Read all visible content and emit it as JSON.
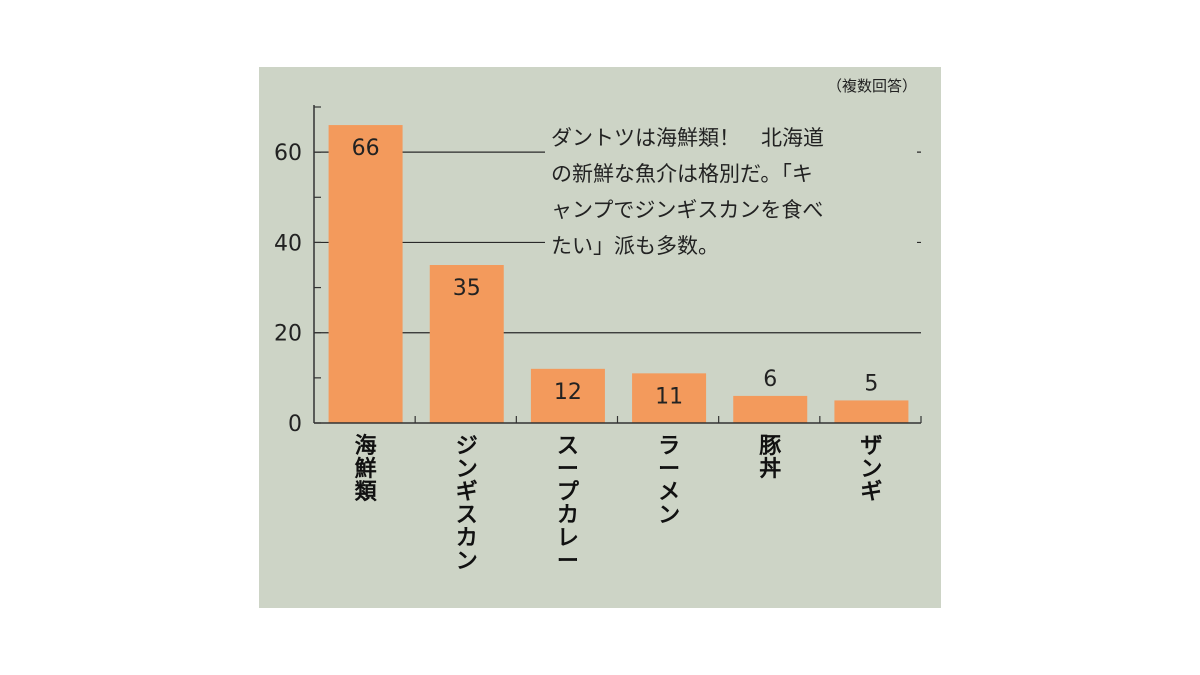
{
  "note": "（複数回答）",
  "annotation_lines": [
    "ダントツは海鮮類！　北海道",
    "の新鮮な魚介は格別だ。「キ",
    "ャンプでジンギスカンを食べ",
    "たい」派も多数。"
  ],
  "colors": {
    "bar": "#f39a5c",
    "panel": "#cdd4c6",
    "axis": "#333333"
  },
  "chart_data": {
    "type": "bar",
    "categories": [
      "海鮮類",
      "ジンギスカン",
      "スープカレー",
      "ラーメン",
      "豚丼",
      "ザンギ"
    ],
    "values": [
      66,
      35,
      12,
      11,
      6,
      5
    ],
    "value_labels": [
      "66",
      "35",
      "12",
      "11",
      "6",
      "5"
    ],
    "yticks": [
      0,
      20,
      40,
      60
    ],
    "ylim": [
      0,
      70
    ],
    "grid": true,
    "title": "",
    "xlabel": "",
    "ylabel": ""
  }
}
